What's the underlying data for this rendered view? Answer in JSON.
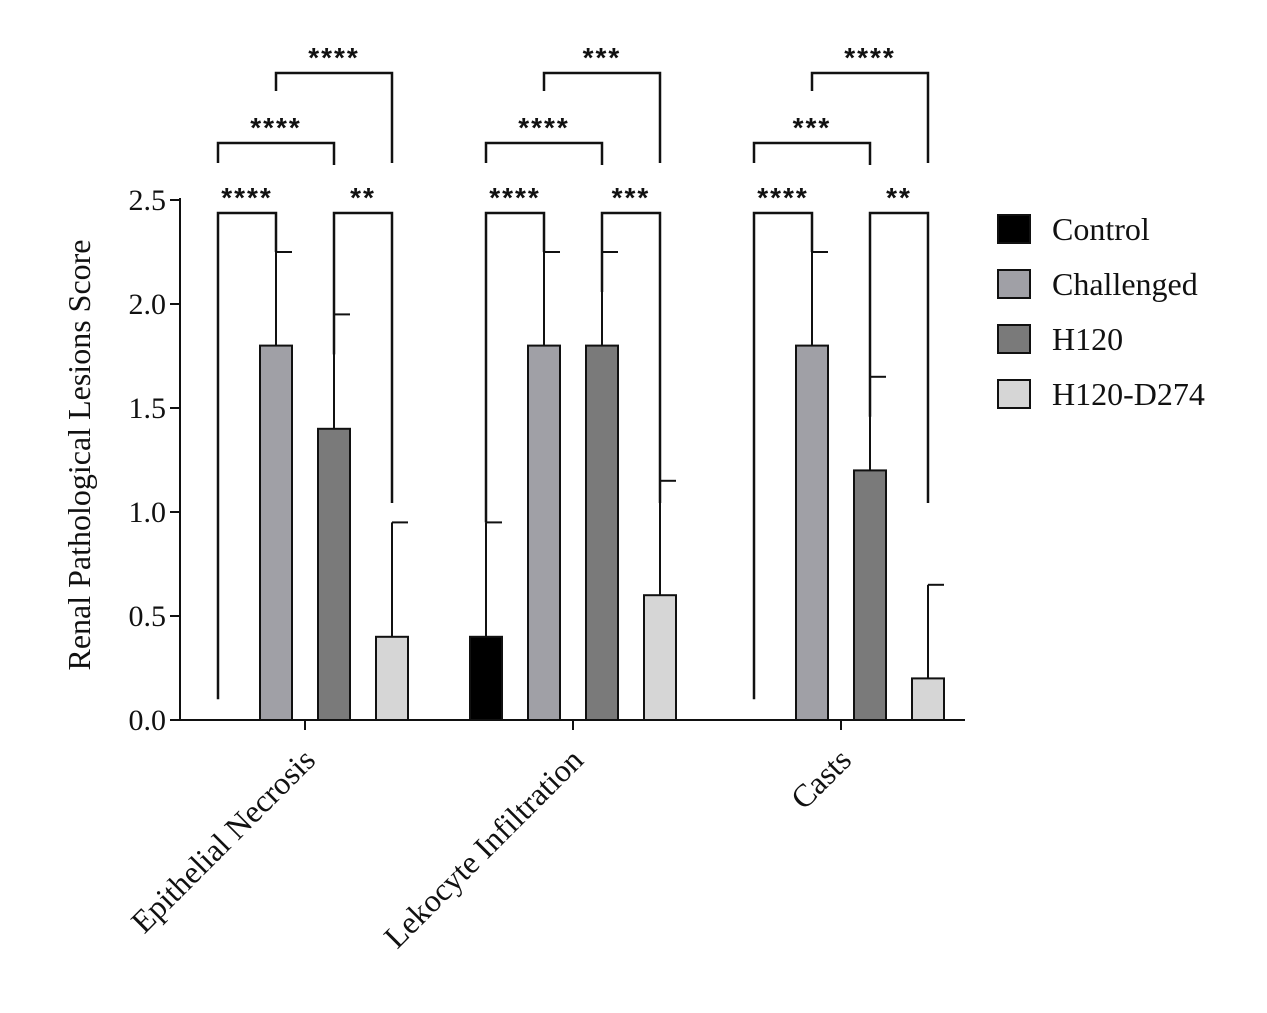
{
  "chart_data": {
    "type": "bar",
    "title": "",
    "xlabel": "",
    "ylabel": "Renal Pathological Lesions Score",
    "ylim": [
      0,
      2.5
    ],
    "yticks": [
      "0.0",
      "0.5",
      "1.0",
      "1.5",
      "2.0",
      "2.5"
    ],
    "categories": [
      "Epithelial Necrosis",
      "Lekocyte Infiltration",
      "Casts"
    ],
    "series": [
      {
        "name": "Control",
        "color": "#000000",
        "values": [
          0,
          0.4,
          0
        ],
        "error": [
          0,
          0.55,
          0
        ]
      },
      {
        "name": "Challenged",
        "color": "#a0a0a6",
        "values": [
          1.8,
          1.8,
          1.8
        ],
        "error": [
          0.45,
          0.45,
          0.45
        ]
      },
      {
        "name": "H120",
        "color": "#7a7a7a",
        "values": [
          1.4,
          1.8,
          1.2
        ],
        "error": [
          0.55,
          0.45,
          0.45
        ]
      },
      {
        "name": "H120-D274",
        "color": "#d6d6d6",
        "values": [
          0.4,
          0.6,
          0.2
        ],
        "error": [
          0.55,
          0.55,
          0.45
        ]
      }
    ],
    "significance": [
      {
        "category": 0,
        "from": 0,
        "to": 1,
        "label": "****",
        "level": 0
      },
      {
        "category": 0,
        "from": 2,
        "to": 3,
        "label": "**",
        "level": 0
      },
      {
        "category": 0,
        "from": 0,
        "to": 2,
        "label": "****",
        "level": 1
      },
      {
        "category": 0,
        "from": 1,
        "to": 3,
        "label": "****",
        "level": 2
      },
      {
        "category": 1,
        "from": 0,
        "to": 1,
        "label": "****",
        "level": 0
      },
      {
        "category": 1,
        "from": 2,
        "to": 3,
        "label": "***",
        "level": 0
      },
      {
        "category": 1,
        "from": 0,
        "to": 2,
        "label": "****",
        "level": 1
      },
      {
        "category": 1,
        "from": 1,
        "to": 3,
        "label": "***",
        "level": 2
      },
      {
        "category": 2,
        "from": 0,
        "to": 1,
        "label": "****",
        "level": 0
      },
      {
        "category": 2,
        "from": 2,
        "to": 3,
        "label": "**",
        "level": 0
      },
      {
        "category": 2,
        "from": 0,
        "to": 2,
        "label": "***",
        "level": 1
      },
      {
        "category": 2,
        "from": 1,
        "to": 3,
        "label": "****",
        "level": 2
      }
    ],
    "legend_position": "right"
  }
}
